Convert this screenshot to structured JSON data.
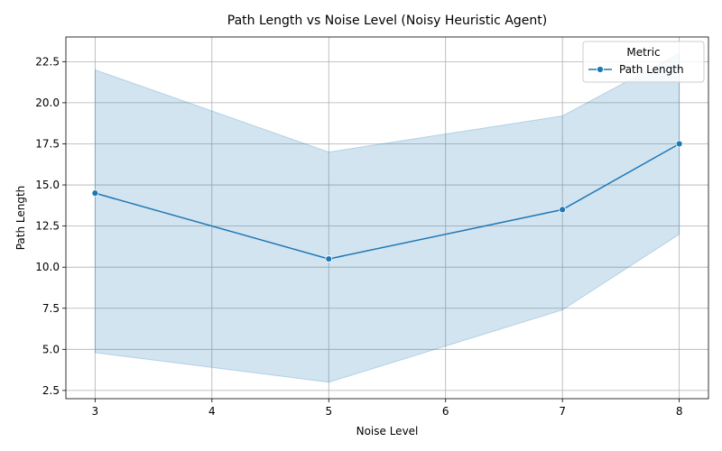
{
  "chart_data": {
    "type": "line",
    "title": "Path Length vs Noise Level (Noisy Heuristic Agent)",
    "xlabel": "Noise Level",
    "ylabel": "Path Length",
    "xlim": [
      2.75,
      8.25
    ],
    "ylim": [
      2.0,
      24.0
    ],
    "xticks": [
      3,
      4,
      5,
      6,
      7,
      8
    ],
    "yticks": [
      2.5,
      5.0,
      7.5,
      10.0,
      12.5,
      15.0,
      17.5,
      20.0,
      22.5
    ],
    "ytick_labels": [
      "2.5",
      "5.0",
      "7.5",
      "10.0",
      "12.5",
      "15.0",
      "17.5",
      "20.0",
      "22.5"
    ],
    "grid": true,
    "legend": {
      "title": "Metric",
      "placement": "top-right"
    },
    "series": [
      {
        "name": "Path Length",
        "color": "#1f77b4",
        "marker": "circle",
        "x": [
          3,
          5,
          7,
          8
        ],
        "y": [
          14.5,
          10.5,
          13.5,
          17.5
        ],
        "band_upper": [
          22.0,
          17.0,
          19.2,
          23.0
        ],
        "band_lower": [
          4.8,
          3.0,
          7.4,
          12.0
        ]
      }
    ]
  }
}
